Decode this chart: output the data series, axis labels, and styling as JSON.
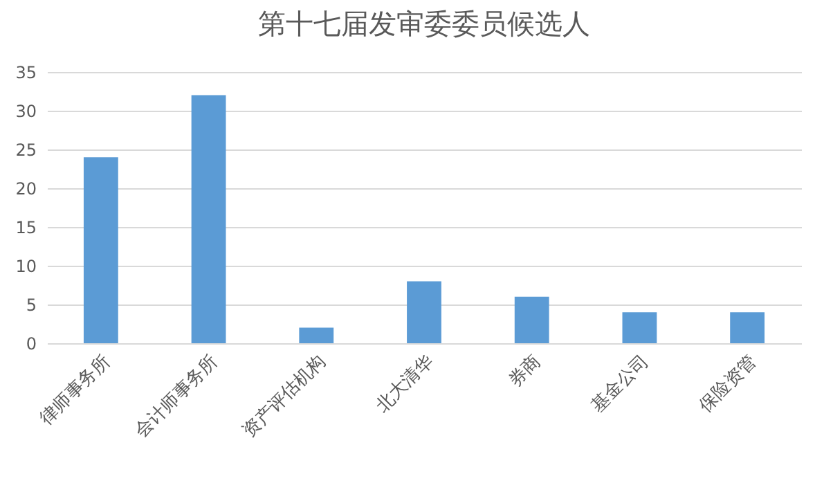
{
  "chart_data": {
    "type": "bar",
    "title": "第十七届发审委委员候选人",
    "categories": [
      "律师事务所",
      "会计师事务所",
      "资产评估机构",
      "北大清华",
      "券商",
      "基金公司",
      "保险资管"
    ],
    "values": [
      24,
      32,
      2,
      8,
      6,
      4,
      4
    ],
    "color": "#5b9bd5",
    "ylim": [
      0,
      35
    ],
    "yticks": [
      0,
      5,
      10,
      15,
      20,
      25,
      30,
      35
    ],
    "grid": "y"
  }
}
